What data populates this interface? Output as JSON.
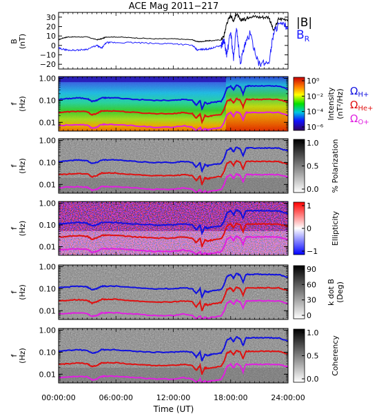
{
  "title": "ACE Mag 2011−217",
  "colors": {
    "B_total": "#000000",
    "B_R": "#1a1aff",
    "omega_H": "#1010e0",
    "omega_He": "#e01010",
    "omega_O": "#e020e0"
  },
  "chart_data": [
    {
      "type": "line",
      "id": "field",
      "ylabel": "B\n(nT)",
      "ylim": [
        -25,
        35
      ],
      "yticks": [
        "30",
        "20",
        "10",
        "0",
        "−10",
        "−20"
      ],
      "ytick_values": [
        30,
        20,
        10,
        0,
        -10,
        -20
      ],
      "legend": [
        "|B|",
        "B"
      ],
      "legend_sub": "R",
      "legend_placement": "right",
      "series": [
        {
          "name": "|B|",
          "x": [
            0,
            0.5,
            1,
            2,
            3,
            4,
            4.5,
            5,
            6,
            8,
            10,
            12,
            14,
            14.5,
            15,
            15.5,
            16,
            17,
            17.3,
            17.6,
            18,
            18.3,
            18.6,
            19,
            19.5,
            20,
            21,
            22,
            22.5,
            23,
            24
          ],
          "values": [
            6,
            8,
            9,
            9,
            9,
            6,
            7,
            9,
            9,
            8,
            7,
            7,
            6,
            4,
            4,
            5,
            5,
            6,
            10,
            24,
            32,
            26,
            34,
            27,
            28,
            31,
            30,
            30,
            15,
            28,
            28
          ]
        },
        {
          "name": "B_R",
          "x": [
            0,
            0.5,
            1,
            2,
            3,
            4,
            4.5,
            5,
            6,
            8,
            10,
            12,
            14,
            14.5,
            15,
            15.5,
            16,
            17,
            17.3,
            17.6,
            18,
            18.3,
            18.6,
            19,
            19.5,
            20,
            21,
            22,
            22.5,
            23,
            24
          ],
          "values": [
            -3,
            -4,
            -5,
            -5,
            -4,
            0,
            -3,
            3,
            3,
            3,
            2,
            2,
            0,
            -5,
            -4,
            -4,
            -3,
            0,
            5,
            -10,
            15,
            -15,
            20,
            -18,
            0,
            12,
            -20,
            -18,
            14,
            22,
            20
          ]
        }
      ]
    },
    {
      "type": "heatmap",
      "id": "intensity",
      "ylabel": "f\n(Hz)",
      "colorbar_label": "Intensity\n(nT²/Hz)",
      "colorbar_ticks": [
        "10⁰",
        "10⁻²",
        "10⁻⁴",
        "10⁻⁶"
      ],
      "colorscale": "rainbow",
      "legend": [
        "ΩH+",
        "ΩHe+",
        "ΩO+"
      ]
    },
    {
      "type": "heatmap",
      "id": "polarization",
      "ylabel": "f\n(Hz)",
      "colorbar_label": "% Polarization",
      "colorbar_ticks": [
        "1.0",
        "0.5",
        "0.0"
      ],
      "colorscale": "gray"
    },
    {
      "type": "heatmap",
      "id": "ellipticity",
      "ylabel": "f\n(Hz)",
      "colorbar_label": "Ellipticity",
      "colorbar_ticks": [
        "1",
        "0",
        "−1"
      ],
      "colorscale": "blue-white-red"
    },
    {
      "type": "heatmap",
      "id": "kdotb",
      "ylabel": "f\n(Hz)",
      "colorbar_label": "k dot B\n(Deg)",
      "colorbar_ticks": [
        "90",
        "60",
        "30",
        "0"
      ],
      "colorscale": "gray"
    },
    {
      "type": "heatmap",
      "id": "coherency",
      "ylabel": "f\n(Hz)",
      "colorbar_label": "Coherency",
      "colorbar_ticks": [
        "1.0",
        "0.5",
        "0.0"
      ],
      "colorscale": "gray"
    }
  ],
  "freq_axis": {
    "scale": "log",
    "ylim": [
      0.004,
      1.2
    ],
    "yticks": [
      "1.00",
      "0.10",
      "0.01"
    ],
    "ytick_values": [
      1.0,
      0.1,
      0.01
    ]
  },
  "gyrofrequency_lines": {
    "x": [
      0,
      1,
      2,
      3,
      3.5,
      4,
      4.5,
      5,
      6,
      8,
      10,
      12,
      13,
      14,
      14.4,
      14.8,
      15,
      15.3,
      15.6,
      16,
      17,
      17.3,
      17.6,
      18,
      18.3,
      18.6,
      19,
      19.3,
      19.6,
      20,
      21,
      22,
      23,
      24
    ],
    "omega_H": [
      0.11,
      0.12,
      0.13,
      0.12,
      0.09,
      0.1,
      0.13,
      0.13,
      0.13,
      0.11,
      0.1,
      0.1,
      0.11,
      0.1,
      0.06,
      0.1,
      0.04,
      0.08,
      0.07,
      0.08,
      0.09,
      0.15,
      0.35,
      0.45,
      0.3,
      0.5,
      0.4,
      0.2,
      0.45,
      0.45,
      0.45,
      0.45,
      0.44,
      0.33
    ],
    "omega_He": [
      0.028,
      0.03,
      0.032,
      0.03,
      0.022,
      0.025,
      0.033,
      0.033,
      0.033,
      0.028,
      0.025,
      0.025,
      0.028,
      0.025,
      0.015,
      0.025,
      0.01,
      0.02,
      0.018,
      0.02,
      0.023,
      0.038,
      0.09,
      0.11,
      0.075,
      0.12,
      0.1,
      0.05,
      0.11,
      0.11,
      0.11,
      0.11,
      0.11,
      0.083
    ],
    "omega_O": [
      0.007,
      0.0075,
      0.008,
      0.0075,
      0.0055,
      0.006,
      0.008,
      0.008,
      0.008,
      0.007,
      0.006,
      0.006,
      0.007,
      0.006,
      0.0042,
      0.006,
      0.0041,
      0.005,
      0.0045,
      0.005,
      0.0058,
      0.0095,
      0.022,
      0.028,
      0.019,
      0.03,
      0.025,
      0.013,
      0.028,
      0.028,
      0.028,
      0.028,
      0.028,
      0.021
    ]
  },
  "time_axis": {
    "xlabel": "Time (UT)",
    "xlim": [
      0,
      24
    ],
    "xtick_values": [
      0,
      6,
      12,
      18,
      24
    ],
    "xticks": [
      "00:00:00",
      "06:00:00",
      "12:00:00",
      "18:00:00",
      "24:00:00"
    ]
  }
}
